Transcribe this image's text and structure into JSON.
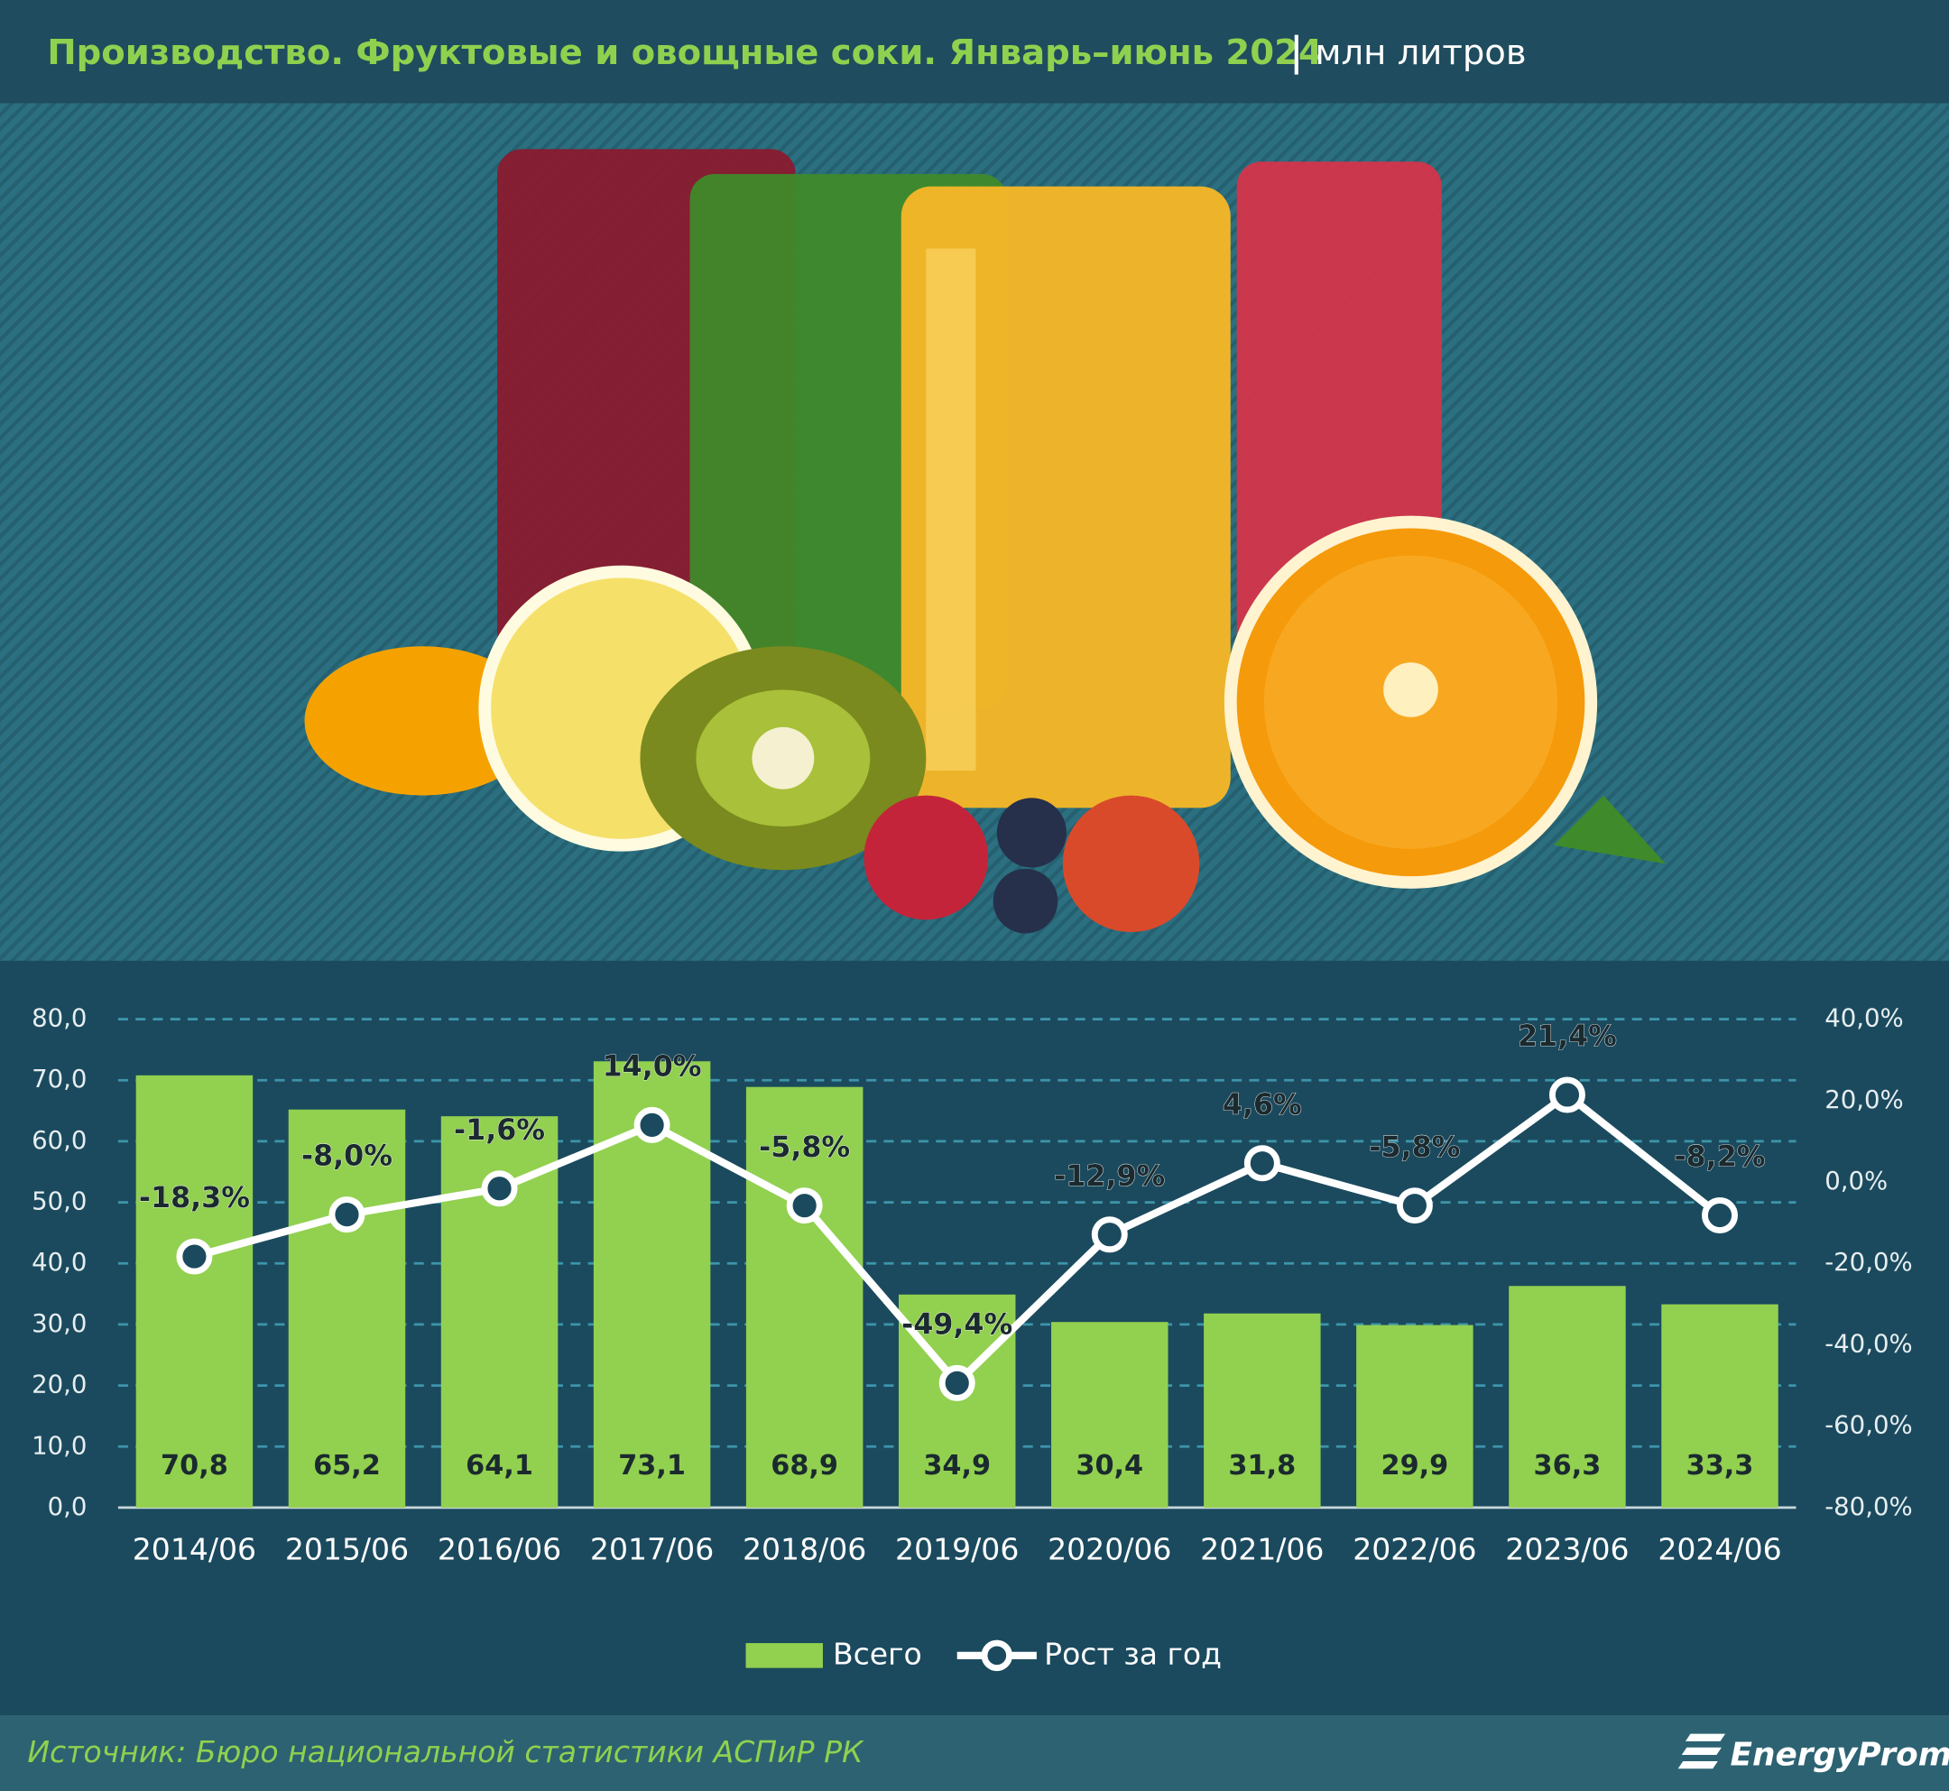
{
  "chart_data": {
    "type": "bar",
    "title": "Производство. Фруктовые и овощные соки. Январь–июнь 2024",
    "subtitle": "млн литров",
    "categories": [
      "2014/06",
      "2015/06",
      "2016/06",
      "2017/06",
      "2018/06",
      "2019/06",
      "2020/06",
      "2021/06",
      "2022/06",
      "2023/06",
      "2024/06"
    ],
    "series": [
      {
        "name": "Всего",
        "type": "bar",
        "color": "#92d050",
        "values": [
          70.8,
          65.2,
          64.1,
          73.1,
          68.9,
          34.9,
          30.4,
          31.8,
          29.9,
          36.3,
          33.3
        ],
        "value_labels": [
          "70,8",
          "65,2",
          "64,1",
          "73,1",
          "68,9",
          "34,9",
          "30,4",
          "31,8",
          "29,9",
          "36,3",
          "33,3"
        ]
      },
      {
        "name": "Рост за год",
        "type": "line",
        "axis": "y2",
        "color": "#ffffff",
        "values": [
          -18.3,
          -8.0,
          -1.6,
          14.0,
          -5.8,
          -49.4,
          -12.9,
          4.6,
          -5.8,
          21.4,
          -8.2
        ],
        "value_labels": [
          "-18,3%",
          "-8,0%",
          "-1,6%",
          "14,0%",
          "-5,8%",
          "-49,4%",
          "-12,9%",
          "4,6%",
          "-5,8%",
          "21,4%",
          "-8,2%"
        ]
      }
    ],
    "ylim": [
      0,
      80
    ],
    "yticks": [
      {
        "value": 0,
        "label": "0,0"
      },
      {
        "value": 10,
        "label": "10,0"
      },
      {
        "value": 20,
        "label": "20,0"
      },
      {
        "value": 30,
        "label": "30,0"
      },
      {
        "value": 40,
        "label": "40,0"
      },
      {
        "value": 50,
        "label": "50,0"
      },
      {
        "value": 60,
        "label": "60,0"
      },
      {
        "value": 70,
        "label": "70,0"
      },
      {
        "value": 80,
        "label": "80,0"
      }
    ],
    "y2lim": [
      -80,
      40
    ],
    "y2ticks": [
      {
        "value": -80,
        "label": "-80,0%"
      },
      {
        "value": -60,
        "label": "-60,0%"
      },
      {
        "value": -40,
        "label": "-40,0%"
      },
      {
        "value": -20,
        "label": "-20,0%"
      },
      {
        "value": 0,
        "label": "0,0%"
      },
      {
        "value": 20,
        "label": "20,0%"
      },
      {
        "value": 40,
        "label": "40,0%"
      }
    ],
    "grid": true,
    "legend": "bottom"
  },
  "source": "Источник: Бюро национальной статистики АСПиР РК",
  "logo": "EnergyProm"
}
